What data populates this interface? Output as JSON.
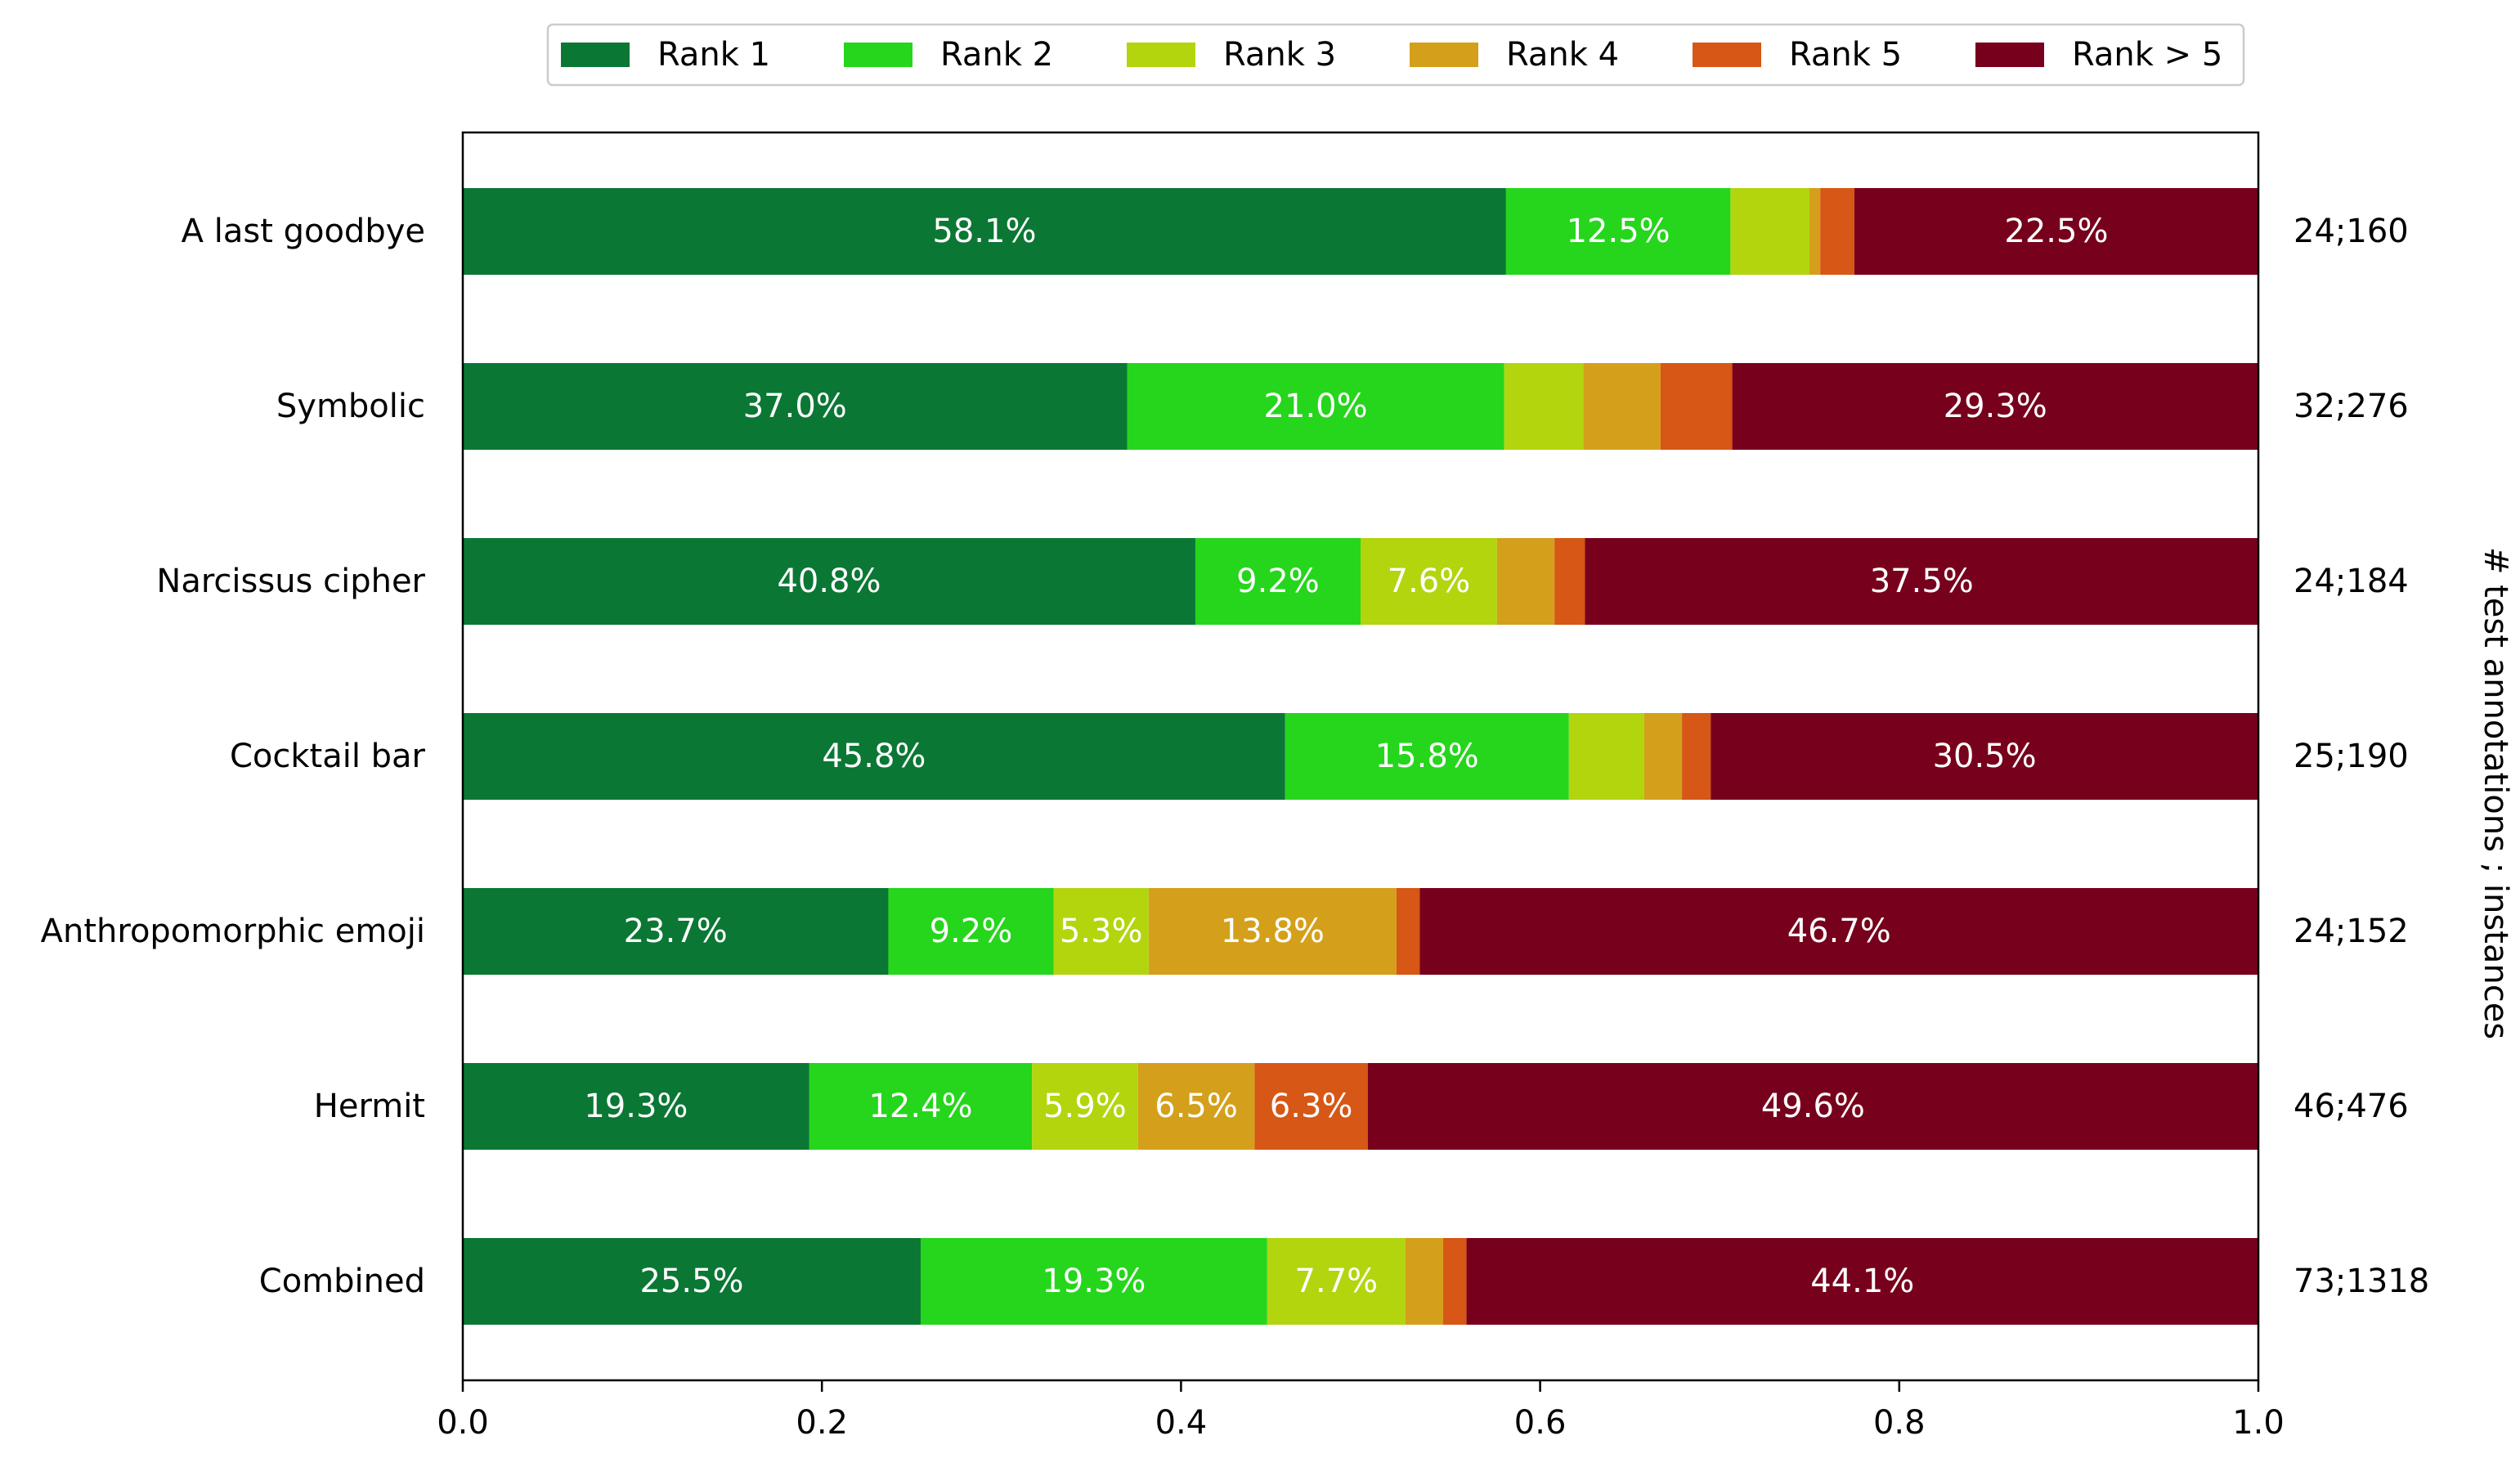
{
  "chart_data": {
    "type": "bar",
    "orientation": "horizontal",
    "stacked": true,
    "categories": [
      "A last goodbye",
      "Symbolic",
      "Narcissus cipher",
      "Cocktail bar",
      "Anthropomorphic emoji",
      "Hermit",
      "Combined"
    ],
    "right_labels": [
      "24;160",
      "32;276",
      "24;184",
      "25;190",
      "24;152",
      "46;476",
      "73;1318"
    ],
    "right_axis_title": "# test annotations ; instances",
    "xlim": [
      0,
      1
    ],
    "xticks": [
      "0.0",
      "0.2",
      "0.4",
      "0.6",
      "0.8",
      "1.0"
    ],
    "legend_position": "top-center",
    "grid": false,
    "series": [
      {
        "name": "Rank 1",
        "color": "#0b7734",
        "values": [
          0.581,
          0.37,
          0.408,
          0.458,
          0.237,
          0.193,
          0.255
        ],
        "labels": [
          "58.1%",
          "37.0%",
          "40.8%",
          "45.8%",
          "23.7%",
          "19.3%",
          "25.5%"
        ]
      },
      {
        "name": "Rank 2",
        "color": "#25d61c",
        "values": [
          0.125,
          0.21,
          0.092,
          0.158,
          0.092,
          0.124,
          0.193
        ],
        "labels": [
          "12.5%",
          "21.0%",
          "9.2%",
          "15.8%",
          "9.2%",
          "12.4%",
          "19.3%"
        ]
      },
      {
        "name": "Rank 3",
        "color": "#b2d50e",
        "values": [
          0.044,
          0.044,
          0.076,
          0.042,
          0.053,
          0.059,
          0.077
        ],
        "labels": [
          "",
          "",
          "7.6%",
          "",
          "5.3%",
          "5.9%",
          "7.7%"
        ]
      },
      {
        "name": "Rank 4",
        "color": "#d4a01b",
        "values": [
          0.006,
          0.043,
          0.032,
          0.021,
          0.138,
          0.065,
          0.021
        ],
        "labels": [
          "",
          "",
          "",
          "",
          "13.8%",
          "6.5%",
          ""
        ]
      },
      {
        "name": "Rank 5",
        "color": "#d65716",
        "values": [
          0.019,
          0.04,
          0.017,
          0.016,
          0.013,
          0.063,
          0.013
        ],
        "labels": [
          "",
          "",
          "",
          "",
          "",
          "6.3%",
          ""
        ]
      },
      {
        "name": "Rank > 5",
        "color": "#77001c",
        "values": [
          0.225,
          0.293,
          0.375,
          0.305,
          0.467,
          0.496,
          0.441
        ],
        "labels": [
          "22.5%",
          "29.3%",
          "37.5%",
          "30.5%",
          "46.7%",
          "49.6%",
          "44.1%"
        ]
      }
    ]
  }
}
